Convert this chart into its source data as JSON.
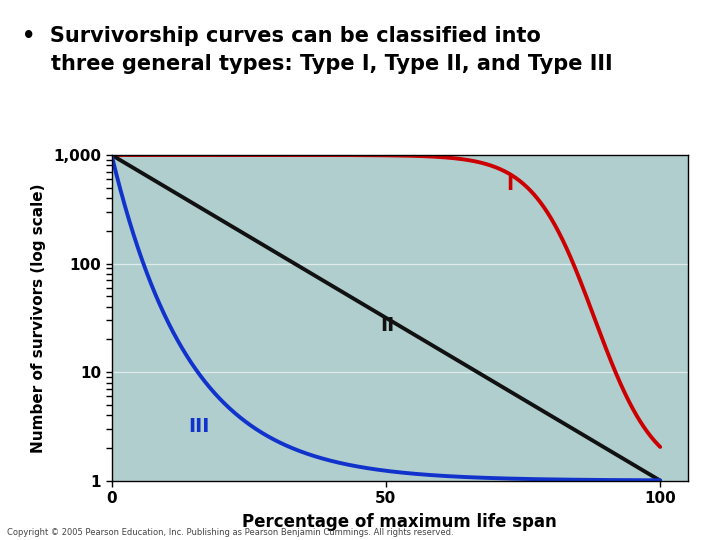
{
  "title_line1": "•  Survivorship curves can be classified into",
  "title_line2": "    three general types: Type I, Type II, and Type III",
  "title_bg": "#ffffff",
  "title_color": "#000000",
  "title_fontsize": 15,
  "teal_line_color": "#008b8b",
  "plot_bg": "#b0cece",
  "outer_bg": "#7aaa7a",
  "xlabel": "Percentage of maximum life span",
  "ylabel": "Number of survivors (log scale)",
  "xlabel_fontsize": 12,
  "ylabel_fontsize": 11,
  "xlim": [
    0,
    105
  ],
  "ylim_log": [
    1,
    1000
  ],
  "yticks": [
    1,
    10,
    100,
    1000
  ],
  "ytick_labels": [
    "1",
    "10",
    "100",
    "1,000"
  ],
  "xticks": [
    0,
    50,
    100
  ],
  "curve_I_color": "#cc0000",
  "curve_II_color": "#111111",
  "curve_III_color": "#1133cc",
  "curve_linewidth": 2.8,
  "label_I": "I",
  "label_II": "II",
  "label_III": "III",
  "label_I_color": "#cc0000",
  "label_II_color": "#111111",
  "label_III_color": "#1133cc",
  "label_fontsize": 14,
  "tick_fontsize": 11,
  "copyright_text": "Copyright © 2005 Pearson Education, Inc. Publishing as Pearson Benjamin Cummings. All rights reserved.",
  "copyright_fontsize": 6,
  "copyright_color": "#444444"
}
